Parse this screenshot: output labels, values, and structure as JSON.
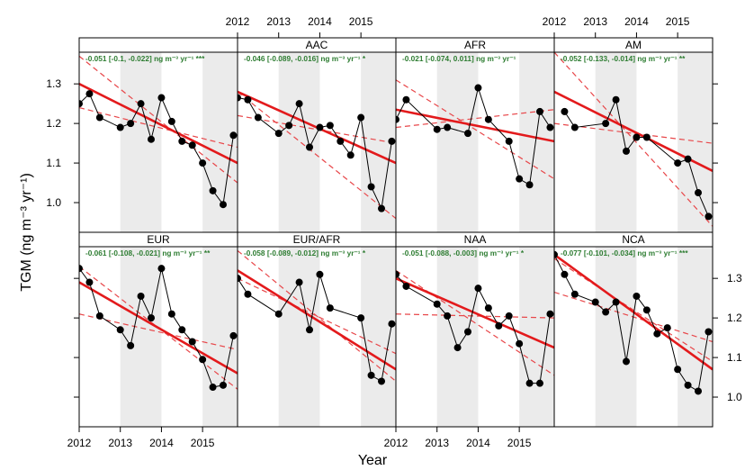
{
  "chart_data": {
    "type": "line",
    "xlabel": "Year",
    "ylabel": "TGM  (ng m⁻³ yr⁻¹)",
    "x_ticks": [
      2012,
      2013,
      2014,
      2015
    ],
    "x_tick_labels": [
      "2012",
      "2013",
      "2014",
      "2015"
    ],
    "xlim": [
      2012.0,
      2015.85
    ],
    "ylim": [
      0.925,
      1.38
    ],
    "y_ticks": [
      1.0,
      1.1,
      1.2,
      1.3
    ],
    "y_tick_labels": [
      "1.0",
      "1.1",
      "1.2",
      "1.3"
    ],
    "shaded_years": [
      [
        2013.0,
        2014.0
      ],
      [
        2015.0,
        2015.85
      ]
    ],
    "grid": false,
    "colors": {
      "data": "#000000",
      "fit": "#e31a1c",
      "ci": "#e8474a",
      "annotation": "#2e7d32",
      "shade": "#ebebeb"
    },
    "panels": [
      {
        "name": "",
        "annotation": "-0.051 [-0.1, -0.022] ng m⁻³ yr⁻¹ ***",
        "x": [
          2012.0,
          2012.25,
          2012.5,
          2013.0,
          2013.25,
          2013.5,
          2013.75,
          2014.0,
          2014.25,
          2014.5,
          2014.75,
          2015.0,
          2015.25,
          2015.5,
          2015.75
        ],
        "y": [
          1.25,
          1.275,
          1.215,
          1.19,
          1.2,
          1.25,
          1.16,
          1.265,
          1.205,
          1.155,
          1.145,
          1.1,
          1.03,
          0.995,
          1.17
        ],
        "fit": [
          1.3,
          1.1
        ],
        "ci_lines": [
          [
            1.24,
            1.14
          ],
          [
            1.37,
            1.05
          ]
        ]
      },
      {
        "name": "AAC",
        "annotation": "-0.046 [-0.089, -0.016] ng m⁻³ yr⁻¹  *",
        "x": [
          2012.0,
          2012.25,
          2012.5,
          2013.0,
          2013.25,
          2013.5,
          2013.75,
          2014.0,
          2014.25,
          2014.5,
          2014.75,
          2015.0,
          2015.25,
          2015.5,
          2015.75
        ],
        "y": [
          1.265,
          1.26,
          1.215,
          1.175,
          1.195,
          1.25,
          1.14,
          1.19,
          1.195,
          1.155,
          1.12,
          1.215,
          1.04,
          0.985,
          1.155
        ],
        "fit": [
          1.28,
          1.1
        ],
        "ci_lines": [
          [
            1.22,
            1.15
          ],
          [
            1.28,
            0.96
          ]
        ]
      },
      {
        "name": "AFR",
        "annotation": "-0.021 [-0.074, 0.011] ng m⁻³ yr⁻¹",
        "x": [
          2012.0,
          2012.25,
          2013.0,
          2013.25,
          2013.75,
          2014.0,
          2014.25,
          2014.75,
          2015.0,
          2015.25,
          2015.5,
          2015.75
        ],
        "y": [
          1.21,
          1.26,
          1.185,
          1.19,
          1.175,
          1.29,
          1.21,
          1.155,
          1.06,
          1.045,
          1.23,
          1.19
        ],
        "fit": [
          1.235,
          1.155
        ],
        "ci_lines": [
          [
            1.19,
            1.235
          ],
          [
            1.31,
            1.06
          ]
        ]
      },
      {
        "name": "AM",
        "annotation": "-0.052 [-0.133, -0.014] ng m⁻³ yr⁻¹ **",
        "x": [
          2012.25,
          2012.5,
          2013.25,
          2013.5,
          2013.75,
          2014.0,
          2014.25,
          2015.0,
          2015.25,
          2015.5,
          2015.75
        ],
        "y": [
          1.23,
          1.19,
          1.2,
          1.26,
          1.13,
          1.165,
          1.165,
          1.1,
          1.11,
          1.025,
          0.965
        ],
        "fit": [
          1.28,
          1.08
        ],
        "ci_lines": [
          [
            1.2,
            1.15
          ],
          [
            1.38,
            0.94
          ]
        ]
      },
      {
        "name": "EUR",
        "annotation": "-0.061 [-0.108, -0.021] ng m⁻³ yr⁻¹ **",
        "x": [
          2012.0,
          2012.25,
          2012.5,
          2013.0,
          2013.25,
          2013.5,
          2013.75,
          2014.0,
          2014.25,
          2014.5,
          2014.75,
          2015.0,
          2015.25,
          2015.5,
          2015.75
        ],
        "y": [
          1.325,
          1.29,
          1.205,
          1.17,
          1.13,
          1.255,
          1.2,
          1.325,
          1.21,
          1.17,
          1.14,
          1.095,
          1.025,
          1.03,
          1.155
        ],
        "fit": [
          1.29,
          1.06
        ],
        "ci_lines": [
          [
            1.21,
            1.12
          ],
          [
            1.33,
            1.02
          ]
        ]
      },
      {
        "name": "EUR/AFR",
        "annotation": "-0.058 [-0.089, -0.012] ng m⁻³ yr⁻¹  *",
        "x": [
          2012.0,
          2012.25,
          2013.0,
          2013.5,
          2013.75,
          2014.0,
          2014.25,
          2015.0,
          2015.25,
          2015.5,
          2015.75
        ],
        "y": [
          1.3,
          1.26,
          1.21,
          1.29,
          1.17,
          1.31,
          1.225,
          1.2,
          1.055,
          1.04,
          1.185
        ],
        "fit": [
          1.32,
          1.07
        ],
        "ci_lines": [
          [
            1.3,
            1.11
          ],
          [
            1.37,
            1.04
          ]
        ]
      },
      {
        "name": "NAA",
        "annotation": "-0.051 [-0.088, -0.003] ng m⁻³ yr⁻¹  *",
        "x": [
          2012.0,
          2012.25,
          2013.0,
          2013.25,
          2013.5,
          2013.75,
          2014.0,
          2014.25,
          2014.5,
          2014.75,
          2015.0,
          2015.25,
          2015.5,
          2015.75
        ],
        "y": [
          1.31,
          1.28,
          1.235,
          1.205,
          1.125,
          1.165,
          1.275,
          1.225,
          1.18,
          1.205,
          1.135,
          1.035,
          1.035,
          1.21
        ],
        "fit": [
          1.3,
          1.125
        ],
        "ci_lines": [
          [
            1.21,
            1.2
          ],
          [
            1.32,
            1.055
          ]
        ]
      },
      {
        "name": "NCA",
        "annotation": "-0.077 [-0.101, -0.034] ng m⁻³ yr⁻¹ ***",
        "x": [
          2012.0,
          2012.25,
          2012.5,
          2013.0,
          2013.25,
          2013.5,
          2013.75,
          2014.0,
          2014.25,
          2014.5,
          2014.75,
          2015.0,
          2015.25,
          2015.5,
          2015.75
        ],
        "y": [
          1.36,
          1.31,
          1.26,
          1.24,
          1.215,
          1.24,
          1.09,
          1.255,
          1.22,
          1.16,
          1.175,
          1.07,
          1.03,
          1.015,
          1.165
        ],
        "fit": [
          1.36,
          1.07
        ],
        "ci_lines": [
          [
            1.265,
            1.14
          ],
          [
            1.35,
            1.09
          ]
        ]
      }
    ]
  }
}
